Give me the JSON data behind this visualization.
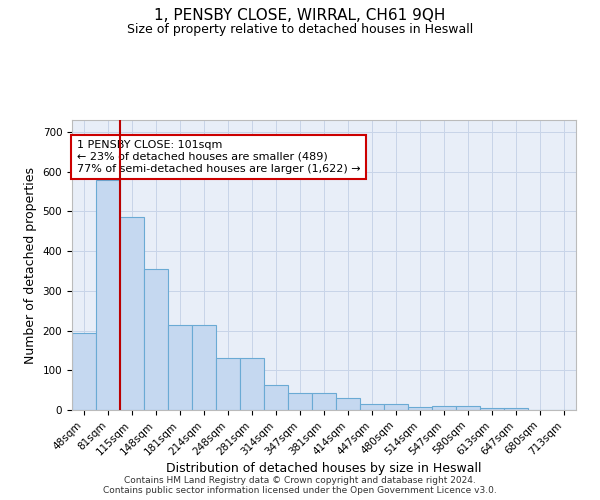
{
  "title": "1, PENSBY CLOSE, WIRRAL, CH61 9QH",
  "subtitle": "Size of property relative to detached houses in Heswall",
  "xlabel": "Distribution of detached houses by size in Heswall",
  "ylabel": "Number of detached properties",
  "categories": [
    "48sqm",
    "81sqm",
    "115sqm",
    "148sqm",
    "181sqm",
    "214sqm",
    "248sqm",
    "281sqm",
    "314sqm",
    "347sqm",
    "381sqm",
    "414sqm",
    "447sqm",
    "480sqm",
    "514sqm",
    "547sqm",
    "580sqm",
    "613sqm",
    "647sqm",
    "680sqm",
    "713sqm"
  ],
  "values": [
    195,
    580,
    485,
    355,
    215,
    215,
    130,
    130,
    63,
    42,
    42,
    30,
    14,
    14,
    8,
    10,
    10,
    6,
    5,
    0,
    0
  ],
  "bar_color": "#c5d8f0",
  "bar_edge_color": "#6aaad4",
  "grid_color": "#c8d4e8",
  "background_color": "#e8eef8",
  "vline_color": "#bb0000",
  "vline_x_index": 1.5,
  "annotation_text": "1 PENSBY CLOSE: 101sqm\n← 23% of detached houses are smaller (489)\n77% of semi-detached houses are larger (1,622) →",
  "annotation_box_color": "#ffffff",
  "annotation_box_edge_color": "#cc0000",
  "footer_text": "Contains HM Land Registry data © Crown copyright and database right 2024.\nContains public sector information licensed under the Open Government Licence v3.0.",
  "ylim": [
    0,
    730
  ],
  "yticks": [
    0,
    100,
    200,
    300,
    400,
    500,
    600,
    700
  ],
  "title_fontsize": 11,
  "subtitle_fontsize": 9,
  "tick_fontsize": 7.5,
  "ylabel_fontsize": 9,
  "xlabel_fontsize": 9
}
